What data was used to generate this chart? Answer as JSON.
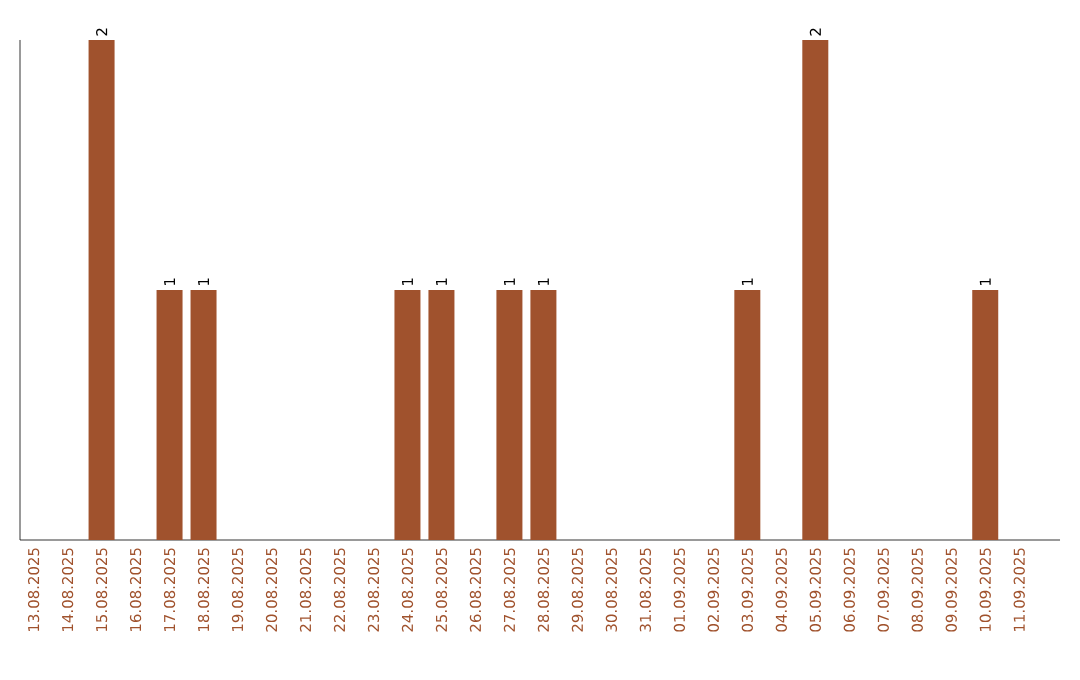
{
  "chart_data": {
    "type": "bar",
    "categories": [
      "13.08.2025",
      "14.08.2025",
      "15.08.2025",
      "16.08.2025",
      "17.08.2025",
      "18.08.2025",
      "19.08.2025",
      "20.08.2025",
      "21.08.2025",
      "22.08.2025",
      "23.08.2025",
      "24.08.2025",
      "25.08.2025",
      "26.08.2025",
      "27.08.2025",
      "28.08.2025",
      "29.08.2025",
      "30.08.2025",
      "31.08.2025",
      "01.09.2025",
      "02.09.2025",
      "03.09.2025",
      "04.09.2025",
      "05.09.2025",
      "06.09.2025",
      "07.09.2025",
      "08.09.2025",
      "09.09.2025",
      "10.09.2025",
      "11.09.2025"
    ],
    "values": [
      0,
      0,
      2,
      0,
      1,
      1,
      0,
      0,
      0,
      0,
      0,
      1,
      1,
      0,
      1,
      1,
      0,
      0,
      0,
      0,
      0,
      1,
      0,
      2,
      0,
      0,
      0,
      0,
      1,
      0
    ],
    "value_labels": [
      null,
      null,
      "2",
      null,
      "1",
      "1",
      null,
      null,
      null,
      null,
      null,
      "1",
      "1",
      null,
      "1",
      "1",
      null,
      null,
      null,
      null,
      null,
      "1",
      null,
      "2",
      null,
      null,
      null,
      null,
      "1",
      null
    ],
    "color": "#a0522d",
    "ylim": [
      0,
      2
    ],
    "tick_labels": "x"
  }
}
